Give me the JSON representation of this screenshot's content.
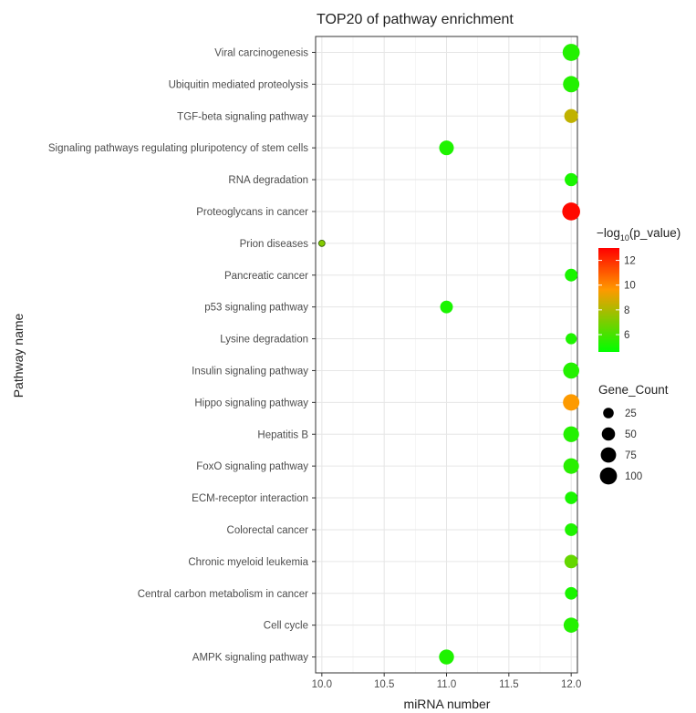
{
  "chart_data": {
    "type": "scatter",
    "title": "TOP20 of pathway enrichment",
    "xlabel": "miRNA number",
    "ylabel": "Pathway name",
    "xlim": [
      9.95,
      12.05
    ],
    "xticks": [
      "10.0",
      "10.5",
      "11.0",
      "11.5",
      "12.0"
    ],
    "grid": true,
    "categories": [
      "AMPK signaling pathway",
      "Cell cycle",
      "Central carbon metabolism in cancer",
      "Chronic myeloid leukemia",
      "Colorectal cancer",
      "ECM-receptor interaction",
      "FoxO signaling pathway",
      "Hepatitis B",
      "Hippo signaling pathway",
      "Insulin signaling pathway",
      "Lysine degradation",
      "p53 signaling pathway",
      "Pancreatic cancer",
      "Prion diseases",
      "Proteoglycans in cancer",
      "RNA degradation",
      "Signaling pathways regulating pluripotency of stem cells",
      "TGF-beta signaling pathway",
      "Ubiquitin mediated proteolysis",
      "Viral carcinogenesis"
    ],
    "points": [
      {
        "pathway": "AMPK signaling pathway",
        "x": 11,
        "gene_count": 70,
        "neg_log10_p": 5.2
      },
      {
        "pathway": "Cell cycle",
        "x": 12,
        "gene_count": 72,
        "neg_log10_p": 5.3
      },
      {
        "pathway": "Central carbon metabolism in cancer",
        "x": 12,
        "gene_count": 42,
        "neg_log10_p": 5.1
      },
      {
        "pathway": "Chronic myeloid leukemia",
        "x": 12,
        "gene_count": 52,
        "neg_log10_p": 6.6
      },
      {
        "pathway": "Colorectal cancer",
        "x": 12,
        "gene_count": 44,
        "neg_log10_p": 5.2
      },
      {
        "pathway": "ECM-receptor interaction",
        "x": 12,
        "gene_count": 42,
        "neg_log10_p": 5.1
      },
      {
        "pathway": "FoxO signaling pathway",
        "x": 12,
        "gene_count": 78,
        "neg_log10_p": 5.4
      },
      {
        "pathway": "Hepatitis B",
        "x": 12,
        "gene_count": 80,
        "neg_log10_p": 5.3
      },
      {
        "pathway": "Hippo signaling pathway",
        "x": 12,
        "gene_count": 90,
        "neg_log10_p": 9.6
      },
      {
        "pathway": "Insulin signaling pathway",
        "x": 12,
        "gene_count": 85,
        "neg_log10_p": 5.3
      },
      {
        "pathway": "Lysine degradation",
        "x": 12,
        "gene_count": 30,
        "neg_log10_p": 5.2
      },
      {
        "pathway": "p53 signaling pathway",
        "x": 11,
        "gene_count": 44,
        "neg_log10_p": 5.1
      },
      {
        "pathway": "Pancreatic cancer",
        "x": 12,
        "gene_count": 44,
        "neg_log10_p": 5.1
      },
      {
        "pathway": "Prion diseases",
        "x": 10,
        "gene_count": 3,
        "neg_log10_p": 7.2
      },
      {
        "pathway": "Proteoglycans in cancer",
        "x": 12,
        "gene_count": 112,
        "neg_log10_p": 12.8
      },
      {
        "pathway": "RNA degradation",
        "x": 12,
        "gene_count": 47,
        "neg_log10_p": 5.1
      },
      {
        "pathway": "Signaling pathways regulating pluripotency of stem cells",
        "x": 11,
        "gene_count": 66,
        "neg_log10_p": 5.2
      },
      {
        "pathway": "TGF-beta signaling pathway",
        "x": 12,
        "gene_count": 56,
        "neg_log10_p": 8.4
      },
      {
        "pathway": "Ubiquitin mediated proteolysis",
        "x": 12,
        "gene_count": 88,
        "neg_log10_p": 5.3
      },
      {
        "pathway": "Viral carcinogenesis",
        "x": 12,
        "gene_count": 100,
        "neg_log10_p": 5.3
      }
    ],
    "color_legend": {
      "title_prefix": "−log",
      "title_sub": "10",
      "title_suffix": "(p_value)",
      "ticks": [
        "6",
        "8",
        "10",
        "12"
      ],
      "range": [
        4.6,
        13.0
      ],
      "low_color": "#00ff00",
      "mid_color": "#ff9900",
      "high_color": "#ff0000"
    },
    "size_legend": {
      "title": "Gene_Count",
      "values": [
        25,
        50,
        75,
        100
      ],
      "labels": [
        "25",
        "50",
        "75",
        "100"
      ]
    },
    "legend_position": "right"
  }
}
